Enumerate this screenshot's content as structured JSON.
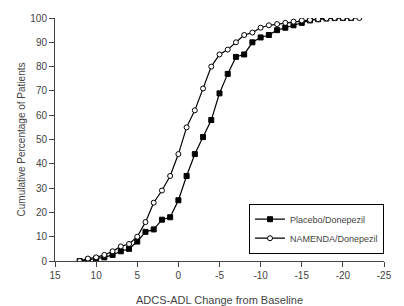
{
  "chart_data": {
    "type": "line",
    "x_label": "ADCS-ADL Change from Baseline",
    "y_label": "Cumulative Percentage of Patients",
    "series": [
      {
        "name": "Placebo/Donepezil",
        "color": "#000000",
        "marker": "square",
        "x": [
          12,
          11,
          10,
          9,
          8,
          7,
          6,
          5,
          4,
          3,
          2,
          1,
          0,
          -1,
          -2,
          -3,
          -4,
          -5,
          -6,
          -7,
          -8,
          -9,
          -10,
          -11,
          -12,
          -13,
          -14,
          -15,
          -16,
          -17,
          -18,
          -19,
          -20,
          -21
        ],
        "values": [
          0,
          0.5,
          1,
          1.5,
          2.5,
          4,
          5,
          8,
          12,
          13,
          17,
          18,
          25,
          35,
          44,
          51,
          58,
          69,
          77,
          84,
          85,
          90,
          92,
          93,
          95,
          96,
          97,
          98,
          99,
          99.5,
          99.8,
          100,
          100,
          100
        ]
      },
      {
        "name": "NAMENDA/Donepezil",
        "color": "#000000",
        "marker": "open circle",
        "x": [
          12,
          11,
          10,
          9,
          8,
          7,
          6,
          5,
          4,
          3,
          2,
          1,
          0,
          -1,
          -2,
          -3,
          -4,
          -5,
          -6,
          -7,
          -8,
          -9,
          -10,
          -11,
          -12,
          -13,
          -14,
          -15,
          -16,
          -17,
          -18,
          -19,
          -20,
          -21,
          -22
        ],
        "values": [
          0,
          1,
          1.5,
          2.5,
          4,
          6,
          7,
          10,
          16,
          24,
          29,
          35,
          44,
          55,
          62,
          71,
          80,
          85,
          87,
          90,
          93,
          94,
          96,
          97,
          97.5,
          98,
          98.5,
          99,
          99.2,
          99.5,
          99.8,
          100,
          100,
          100,
          100
        ]
      }
    ],
    "xlim": [
      15,
      -25
    ],
    "xticks": [
      15,
      10,
      5,
      0,
      -5,
      -10,
      -15,
      -20,
      -25
    ],
    "ylim": [
      0,
      100
    ],
    "yticks": [
      0,
      10,
      20,
      30,
      40,
      50,
      60,
      70,
      80,
      90,
      100
    ],
    "grid": false,
    "legend": "lower right"
  }
}
